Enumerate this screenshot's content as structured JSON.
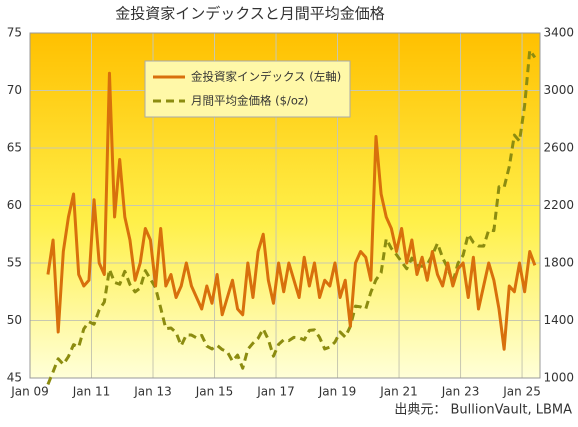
{
  "chart_data": {
    "type": "line",
    "title": "金投資家インデックスと月間平均金価格",
    "source": "出典元： BullionVault, LBMA",
    "legend": "upper center",
    "grid": true,
    "x": [
      "2009-08",
      "2009-10",
      "2009-12",
      "2010-02",
      "2010-04",
      "2010-06",
      "2010-08",
      "2010-10",
      "2010-12",
      "2011-02",
      "2011-04",
      "2011-06",
      "2011-08",
      "2011-10",
      "2011-12",
      "2012-02",
      "2012-04",
      "2012-06",
      "2012-08",
      "2012-10",
      "2012-12",
      "2013-02",
      "2013-04",
      "2013-06",
      "2013-08",
      "2013-10",
      "2013-12",
      "2014-02",
      "2014-04",
      "2014-06",
      "2014-08",
      "2014-10",
      "2014-12",
      "2015-02",
      "2015-04",
      "2015-06",
      "2015-08",
      "2015-10",
      "2015-12",
      "2016-02",
      "2016-04",
      "2016-06",
      "2016-08",
      "2016-10",
      "2016-12",
      "2017-02",
      "2017-04",
      "2017-06",
      "2017-08",
      "2017-10",
      "2017-12",
      "2018-02",
      "2018-04",
      "2018-06",
      "2018-08",
      "2018-10",
      "2018-12",
      "2019-02",
      "2019-04",
      "2019-06",
      "2019-08",
      "2019-10",
      "2019-12",
      "2020-02",
      "2020-04",
      "2020-06",
      "2020-08",
      "2020-10",
      "2020-12",
      "2021-02",
      "2021-04",
      "2021-06",
      "2021-08",
      "2021-10",
      "2021-12",
      "2022-02",
      "2022-04",
      "2022-06",
      "2022-08",
      "2022-10",
      "2022-12",
      "2023-02",
      "2023-04",
      "2023-06",
      "2023-08",
      "2023-10",
      "2023-12",
      "2024-02",
      "2024-04",
      "2024-06",
      "2024-08",
      "2024-10",
      "2024-12",
      "2025-02",
      "2025-04",
      "2025-06"
    ],
    "xlim": [
      "2009-01",
      "2025-08"
    ],
    "xticks": [
      {
        "value": "2009-01",
        "label": "Jan 09"
      },
      {
        "value": "2011-01",
        "label": "Jan 11"
      },
      {
        "value": "2013-01",
        "label": "Jan 13"
      },
      {
        "value": "2015-01",
        "label": "Jan 15"
      },
      {
        "value": "2017-01",
        "label": "Jan 17"
      },
      {
        "value": "2019-01",
        "label": "Jan 19"
      },
      {
        "value": "2021-01",
        "label": "Jan 21"
      },
      {
        "value": "2023-01",
        "label": "Jan 23"
      },
      {
        "value": "2025-01",
        "label": "Jan 25"
      }
    ],
    "ylim": [
      45,
      75
    ],
    "yticks": [
      45,
      50,
      55,
      60,
      65,
      70,
      75
    ],
    "y2lim": [
      1000,
      3400
    ],
    "y2ticks": [
      1000,
      1400,
      1800,
      2200,
      2600,
      3000,
      3400
    ],
    "series": [
      {
        "name": "金投資家インデックス (左軸)",
        "color": "#d8700c",
        "values": [
          54,
          57,
          49,
          56,
          59,
          61,
          54,
          53,
          53.5,
          60.5,
          55,
          54,
          71.5,
          59,
          64,
          59,
          57,
          53.5,
          55,
          58,
          57,
          53,
          58,
          53,
          54,
          52,
          53,
          55,
          53,
          52,
          51,
          53,
          51.5,
          54,
          50.5,
          52,
          53.5,
          51,
          50.5,
          55,
          52,
          56,
          57.5,
          53.5,
          51.5,
          55,
          52.5,
          55,
          53.5,
          52,
          55.5,
          53,
          55,
          52,
          53.5,
          53,
          55,
          52,
          53.5,
          49.5,
          55,
          56,
          55.5,
          53.5,
          66,
          61,
          59,
          58,
          56,
          58,
          55,
          57,
          54,
          55.5,
          53.5,
          56,
          54,
          53,
          55,
          53,
          54.5,
          55,
          52,
          55.5,
          51,
          53,
          55,
          53.5,
          51,
          47.5,
          53,
          52.5,
          55,
          52.5,
          56,
          54.8
        ]
      },
      {
        "name": "月間平均金価格 ($/oz)",
        "color": "#8c8c10",
        "dashed": true,
        "axis": "y2",
        "values": [
          955,
          1043,
          1134,
          1095,
          1149,
          1232,
          1215,
          1342,
          1391,
          1374,
          1474,
          1528,
          1756,
          1665,
          1652,
          1742,
          1650,
          1599,
          1626,
          1747,
          1688,
          1627,
          1487,
          1343,
          1348,
          1316,
          1225,
          1300,
          1299,
          1279,
          1296,
          1222,
          1202,
          1227,
          1198,
          1182,
          1117,
          1159,
          1068,
          1200,
          1242,
          1276,
          1341,
          1267,
          1152,
          1234,
          1266,
          1260,
          1283,
          1280,
          1265,
          1331,
          1335,
          1282,
          1202,
          1215,
          1250,
          1320,
          1285,
          1359,
          1500,
          1495,
          1480,
          1597,
          1683,
          1732,
          1968,
          1901,
          1858,
          1808,
          1760,
          1834,
          1785,
          1777,
          1790,
          1856,
          1937,
          1837,
          1765,
          1665,
          1798,
          1854,
          2000,
          1943,
          1918,
          1917,
          2030,
          2025,
          2330,
          2326,
          2470,
          2690,
          2648,
          2895,
          3280,
          3230
        ]
      }
    ]
  }
}
